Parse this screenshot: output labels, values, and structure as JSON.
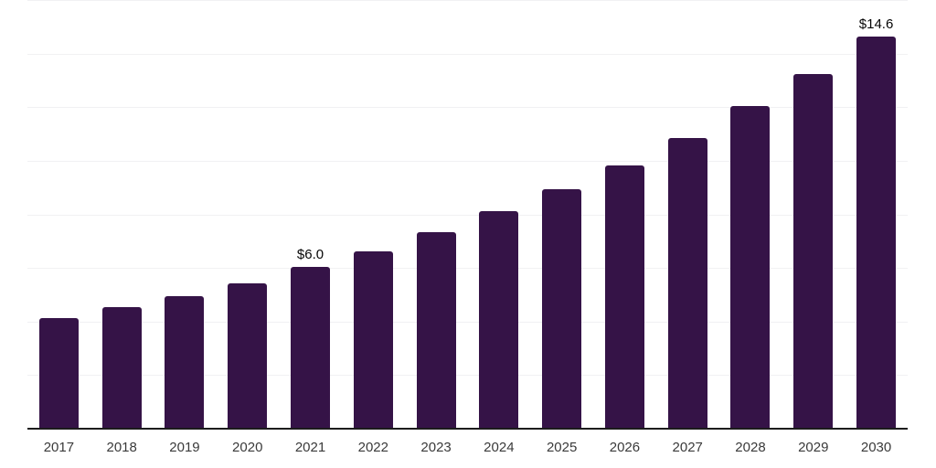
{
  "chart_data": {
    "type": "bar",
    "title": "",
    "categories": [
      "2017",
      "2018",
      "2019",
      "2020",
      "2021",
      "2022",
      "2023",
      "2024",
      "2025",
      "2026",
      "2027",
      "2028",
      "2029",
      "2030"
    ],
    "values": [
      4.1,
      4.5,
      4.9,
      5.4,
      6.0,
      6.6,
      7.3,
      8.1,
      8.9,
      9.8,
      10.8,
      12.0,
      13.2,
      14.6
    ],
    "data_labels": {
      "2021": "$6.0",
      "2030": "$14.6"
    },
    "xlabel": "",
    "ylabel": "",
    "ylim": [
      0,
      16
    ],
    "gridline_step": 2,
    "grid": "horizontal",
    "legend": "none",
    "colors": {
      "bar": "#351347",
      "axis_line": "#1c1c1c",
      "gridline": "#f1f1f3",
      "tick_label": "#3a3a3a",
      "data_label": "#050505",
      "background": "#ffffff"
    }
  }
}
